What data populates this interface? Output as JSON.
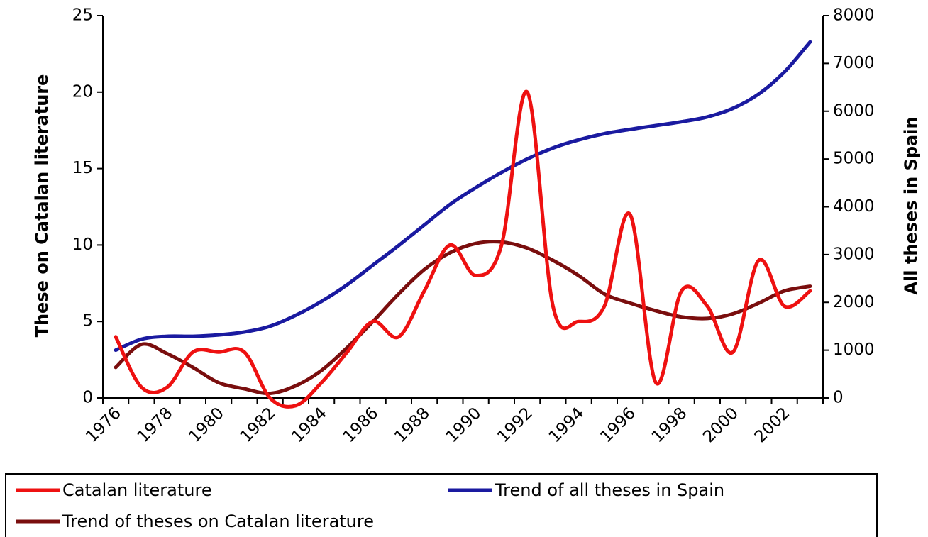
{
  "chart_data": {
    "type": "line",
    "title": "",
    "ylabel_left": "These on Catalan literature",
    "ylabel_right": "All theses in Spain",
    "xlabel": "",
    "x_tick_labels": [
      "1976",
      "1978",
      "1980",
      "1982",
      "1984",
      "1986",
      "1988",
      "1990",
      "1992",
      "1994",
      "1996",
      "1998",
      "2000",
      "2002"
    ],
    "y_left_ticks": [
      "0",
      "5",
      "10",
      "15",
      "20",
      "25"
    ],
    "y_right_ticks": [
      "0",
      "1000",
      "2000",
      "3000",
      "4000",
      "5000",
      "6000",
      "7000",
      "8000"
    ],
    "ylim_left": [
      0,
      25
    ],
    "ylim_right": [
      0,
      8000
    ],
    "xlim": [
      1976,
      2004
    ],
    "x": [
      1976.5,
      1977.5,
      1978.5,
      1979.5,
      1980.5,
      1981.5,
      1982.5,
      1983.5,
      1984.5,
      1985.5,
      1986.5,
      1987.5,
      1988.5,
      1989.5,
      1990.5,
      1991.5,
      1992.5,
      1993.5,
      1994.5,
      1995.5,
      1996.5,
      1997.5,
      1998.5,
      1999.5,
      2000.5,
      2001.5,
      2002.5,
      2003.5
    ],
    "legend_position": "bottom",
    "series": [
      {
        "name": "Catalan literature",
        "axis": "left",
        "color": "#ee1111",
        "values": [
          4,
          0.7,
          0.7,
          3,
          3,
          3,
          0,
          -0.5,
          1,
          3,
          5,
          4,
          7,
          10,
          8,
          10,
          20,
          6,
          5,
          6,
          12,
          1,
          7,
          6,
          3,
          9,
          6,
          7
        ]
      },
      {
        "name": "Trend of all theses in Spain",
        "axis": "right",
        "color": "#1a1aa0",
        "values": [
          1000,
          1230,
          1290,
          1290,
          1320,
          1380,
          1500,
          1730,
          2020,
          2370,
          2780,
          3190,
          3620,
          4050,
          4400,
          4720,
          5000,
          5230,
          5400,
          5530,
          5620,
          5700,
          5780,
          5880,
          6060,
          6360,
          6820,
          7450
        ]
      },
      {
        "name": "Trend of theses on Catalan literature",
        "axis": "left",
        "color": "#7a0e0e",
        "values": [
          2,
          3.5,
          2.9,
          2,
          1,
          0.6,
          0.3,
          0.8,
          1.8,
          3.3,
          5,
          6.8,
          8.4,
          9.5,
          10.1,
          10.2,
          9.8,
          9,
          8,
          6.8,
          6.2,
          5.7,
          5.3,
          5.2,
          5.5,
          6.2,
          7,
          7.3
        ]
      }
    ]
  }
}
